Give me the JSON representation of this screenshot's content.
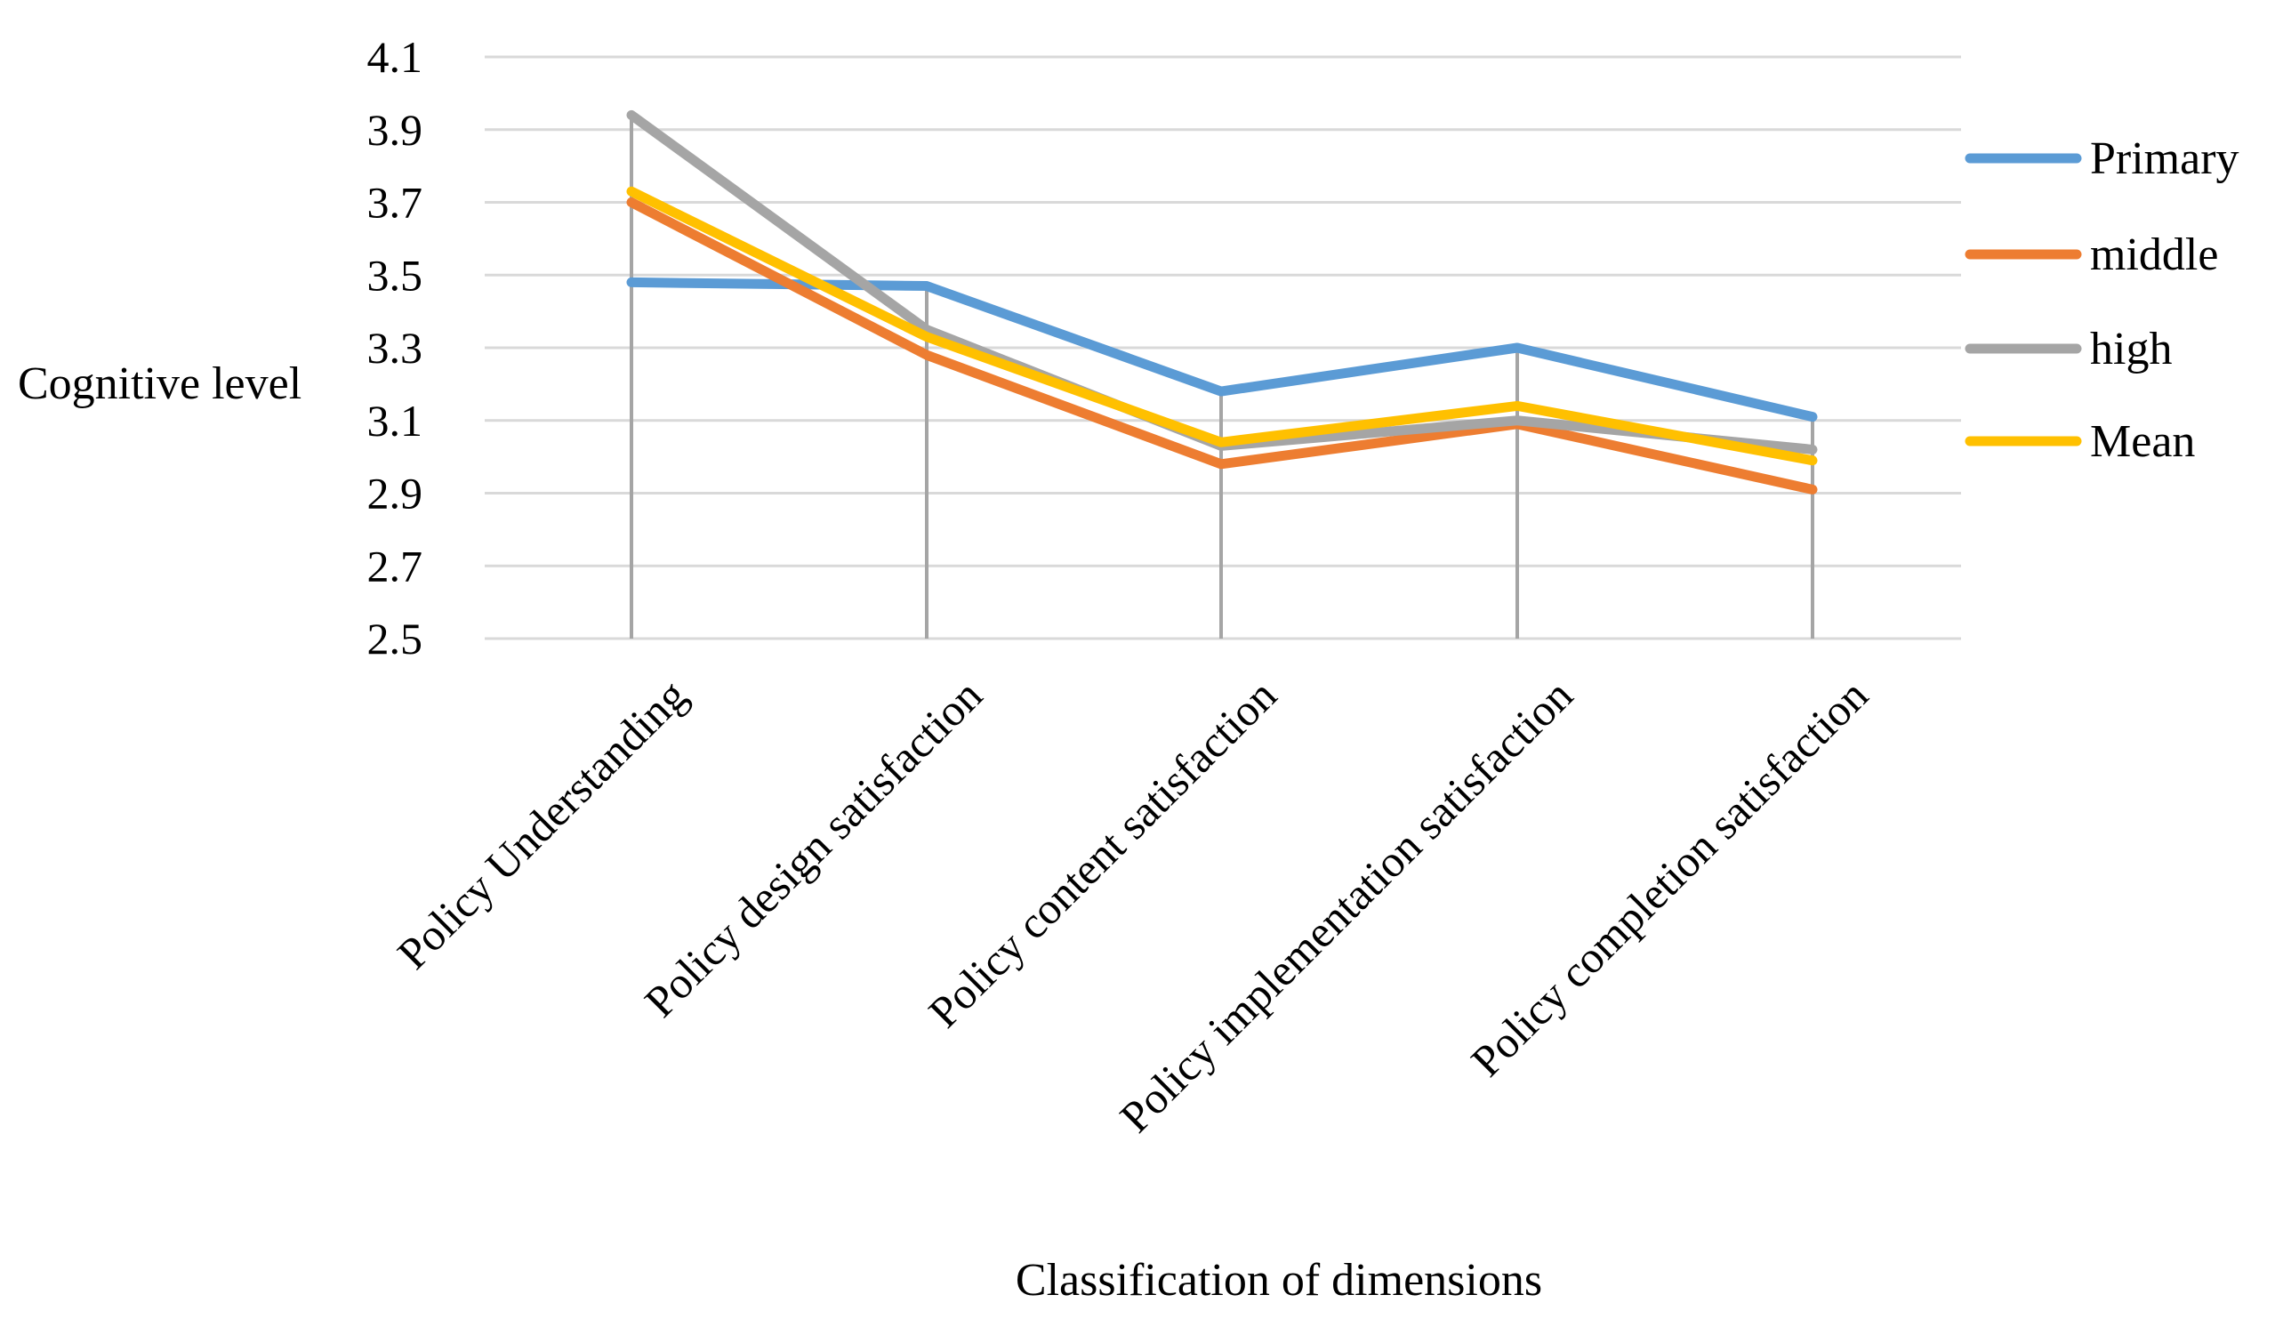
{
  "chart_data": {
    "type": "line",
    "title": "",
    "xlabel": "Classification of dimensions",
    "ylabel": "Cognitive level",
    "ylim": [
      2.5,
      4.1
    ],
    "yticks": [
      4.1,
      3.9,
      3.7,
      3.5,
      3.3,
      3.1,
      2.9,
      2.7,
      2.5
    ],
    "ytick_labels": [
      "4.1",
      "3.9",
      "3.7",
      "3.5",
      "3.3",
      "3.1",
      "2.9",
      "2.7",
      "2.5"
    ],
    "grid": true,
    "legend_position": "right",
    "categories": [
      "Policy Understanding",
      "Policy design satisfaction",
      "Policy content satisfaction",
      "Policy implementation satisfaction",
      "Policy completion satisfaction"
    ],
    "series": [
      {
        "name": "Primary",
        "color": "#5B9BD5",
        "values": [
          3.48,
          3.47,
          3.18,
          3.3,
          3.11
        ]
      },
      {
        "name": "middle",
        "color": "#ED7D31",
        "values": [
          3.7,
          3.28,
          2.98,
          3.09,
          2.91
        ]
      },
      {
        "name": "high",
        "color": "#A5A5A5",
        "values": [
          3.94,
          3.35,
          3.03,
          3.1,
          3.02
        ]
      },
      {
        "name": "Mean",
        "color": "#FFC000",
        "values": [
          3.73,
          3.33,
          3.04,
          3.14,
          2.99
        ]
      }
    ]
  }
}
